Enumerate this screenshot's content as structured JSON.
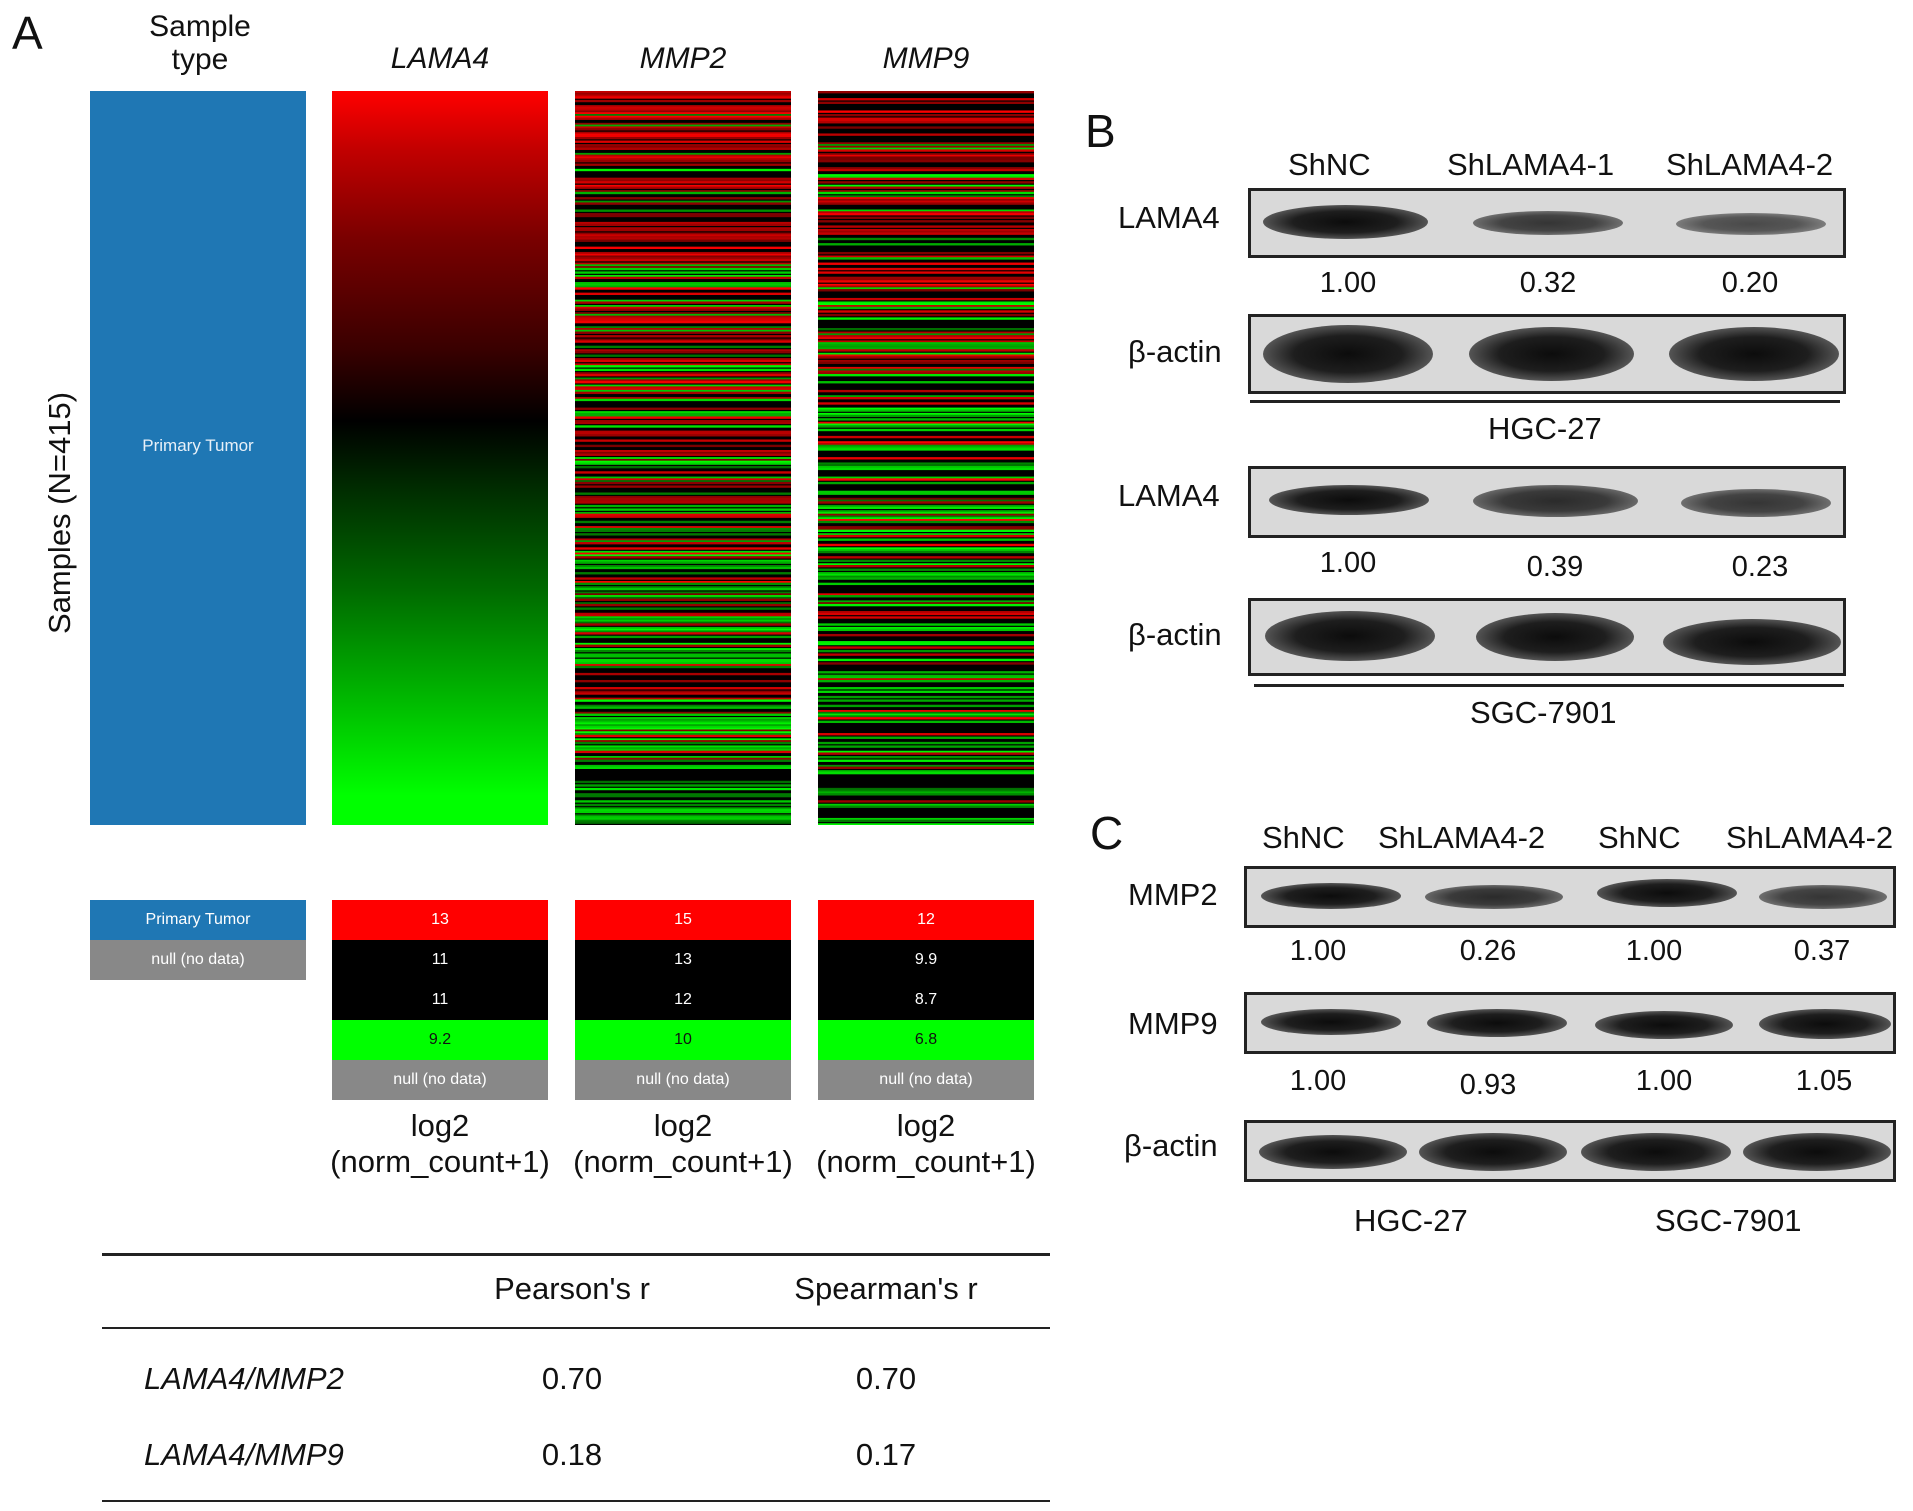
{
  "panelA": {
    "letter": "A",
    "y_axis_label": "Samples (N=415)",
    "columns": [
      {
        "header_line1": "Sample",
        "header_line2": "type",
        "italic": false,
        "inside_label": "Primary Tumor"
      },
      {
        "header": "LAMA4",
        "italic": true
      },
      {
        "header": "MMP2",
        "italic": true
      },
      {
        "header": "MMP9",
        "italic": true
      }
    ],
    "sample_legend": [
      "Primary Tumor",
      "null (no data)"
    ],
    "value_legends": [
      {
        "gene": "LAMA4",
        "values": [
          "13",
          "11",
          "11",
          "9.2"
        ],
        "null": "null (no data)"
      },
      {
        "gene": "MMP2",
        "values": [
          "15",
          "13",
          "12",
          "10"
        ],
        "null": "null (no data)"
      },
      {
        "gene": "MMP9",
        "values": [
          "12",
          "9.9",
          "8.7",
          "6.8"
        ],
        "null": "null (no data)"
      }
    ],
    "unit_line1": "log2",
    "unit_line2": "(norm_count+1)",
    "colors": {
      "high": "#ff0000",
      "mid": "#000000",
      "low": "#00ff00",
      "tumor": "#1f77b4",
      "null": "#888888"
    },
    "correlation_table": {
      "headers": [
        "",
        "Pearson's r",
        "Spearman's r"
      ],
      "rows": [
        {
          "pair": "LAMA4/MMP2",
          "pearson": "0.70",
          "spearman": "0.70"
        },
        {
          "pair": "LAMA4/MMP9",
          "pearson": "0.18",
          "spearman": "0.17"
        }
      ]
    }
  },
  "panelB": {
    "letter": "B",
    "lanes": [
      "ShNC",
      "ShLAMA4-1",
      "ShLAMA4-2"
    ],
    "groups": [
      {
        "cell_line": "HGC-27",
        "target": "LAMA4",
        "values": [
          "1.00",
          "0.32",
          "0.20"
        ],
        "control": "β-actin"
      },
      {
        "cell_line": "SGC-7901",
        "target": "LAMA4",
        "values": [
          "1.00",
          "0.39",
          "0.23"
        ],
        "control": "β-actin"
      }
    ]
  },
  "panelC": {
    "letter": "C",
    "lanes": [
      "ShNC",
      "ShLAMA4-2",
      "ShNC",
      "ShLAMA4-2"
    ],
    "rows": [
      {
        "label": "MMP2",
        "values": [
          "1.00",
          "0.26",
          "1.00",
          "0.37"
        ]
      },
      {
        "label": "MMP9",
        "values": [
          "1.00",
          "0.93",
          "1.00",
          "1.05"
        ]
      },
      {
        "label": "β-actin"
      }
    ],
    "cell_lines": [
      "HGC-27",
      "SGC-7901"
    ]
  }
}
